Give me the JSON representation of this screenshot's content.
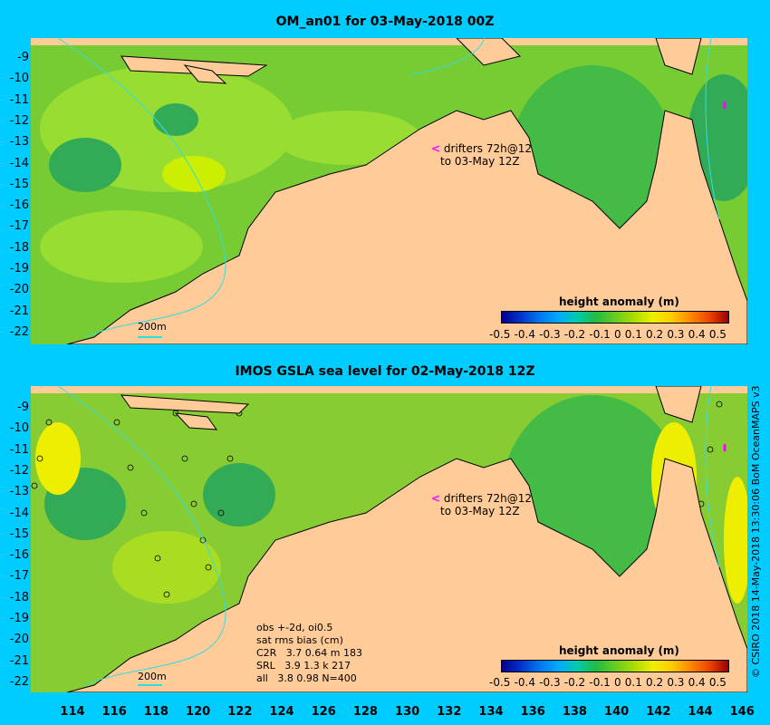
{
  "top_panel": {
    "title": "OM_an01 for 03-May-2018 00Z",
    "drifters_line1": "drifters 72h@12",
    "drifters_line2": "to 03-May 12Z",
    "scale_label": "200m",
    "colorbar_title": "height anomaly (m)"
  },
  "bottom_panel": {
    "title": "IMOS GSLA sea level  for 02-May-2018 12Z",
    "drifters_line1": "drifters 72h@12",
    "drifters_line2": "to 03-May 12Z",
    "scale_label": "200m",
    "colorbar_title": "height anomaly (m)",
    "stats": [
      "obs +-2d, oi0.5",
      "sat rms bias (cm)",
      "C2R   3.7 0.64 m 183",
      "SRL   3.9 1.3 k 217",
      "all   3.8 0.98 N=400"
    ]
  },
  "colorbar_ticks": [
    "-0.5",
    "-0.4",
    "-0.3",
    "-0.2",
    "-0.1",
    "0",
    "0.1",
    "0.2",
    "0.3",
    "0.4",
    "0.5"
  ],
  "lat_labels": [
    "-9",
    "-10",
    "-11",
    "-12",
    "-13",
    "-14",
    "-15",
    "-16",
    "-17",
    "-18",
    "-19",
    "-20",
    "-21",
    "-22"
  ],
  "lon_labels": [
    "114",
    "116",
    "118",
    "120",
    "122",
    "124",
    "126",
    "128",
    "130",
    "132",
    "134",
    "136",
    "138",
    "140",
    "142",
    "144",
    "146"
  ],
  "credit": "© CSIRO 2018  14-May-2018 13:30:06 BoM OceanMAPS v3",
  "colors": {
    "background": "#00ccff",
    "land": "#ffcc99",
    "ocean_green": "#66cc33",
    "drifter": "#ff00ff"
  }
}
